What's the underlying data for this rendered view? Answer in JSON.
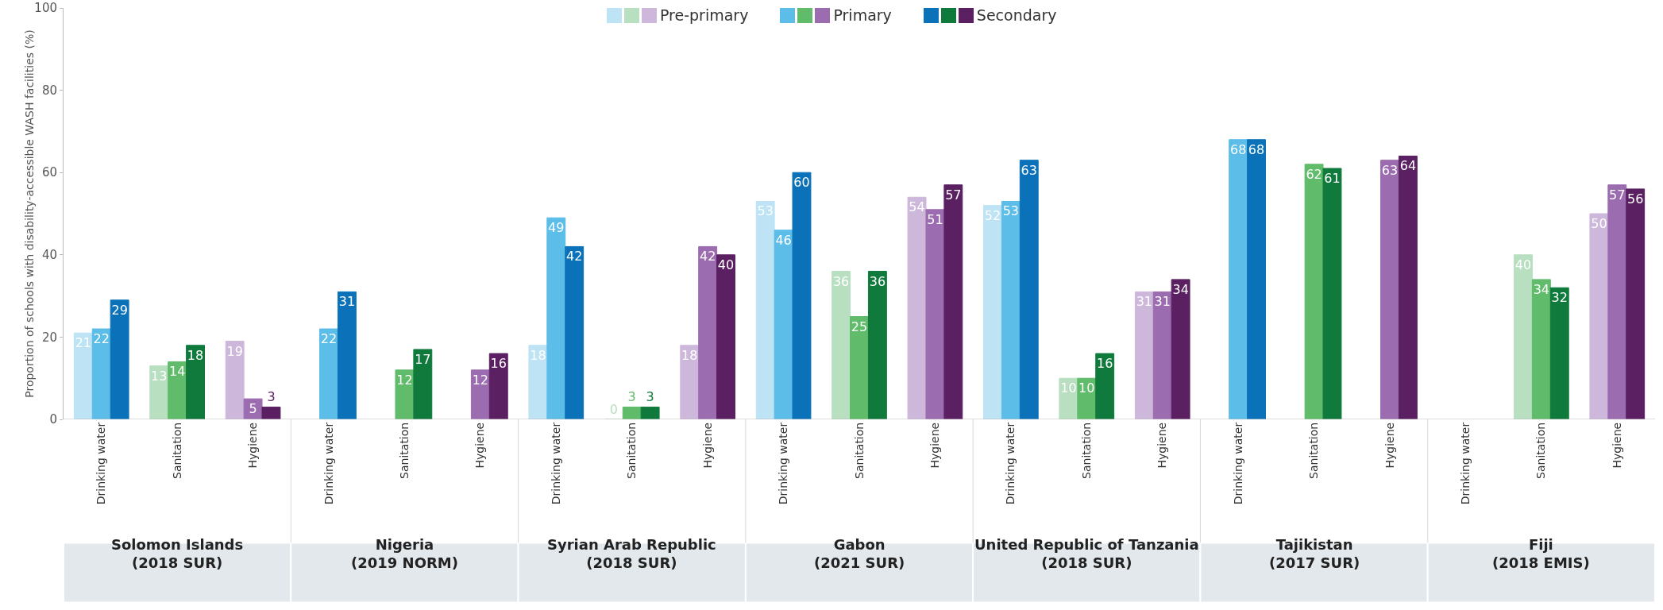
{
  "chart_data": {
    "type": "bar",
    "ylabel": "Proportion of schools with disability-accessible WASH facilities (%)",
    "categories": [
      "Drinking water",
      "Sanitation",
      "Hygiene",
      "Drinking water",
      "Sanitation",
      "Hygiene",
      "Drinking water",
      "Sanitation",
      "Hygiene",
      "Drinking water",
      "Sanitation",
      "Hygiene",
      "Drinking water",
      "Sanitation",
      "Hygiene",
      "Drinking water",
      "Sanitation",
      "Hygiene",
      "Drinking water",
      "Sanitation",
      "Hygiene"
    ],
    "series": [
      {
        "name": "Pre-primary",
        "colors": [
          "#bde3f5",
          "#b7dfc0",
          "#cdb8db",
          "#bde3f5",
          "#b7dfc0",
          "#cdb8db",
          "#bde3f5",
          "#b7dfc0",
          "#cdb8db",
          "#bde3f5",
          "#b7dfc0",
          "#cdb8db",
          "#bde3f5",
          "#b7dfc0",
          "#cdb8db",
          "#bde3f5",
          "#b7dfc0",
          "#cdb8db",
          "#bde3f5",
          "#b7dfc0",
          "#cdb8db"
        ],
        "values": [
          21,
          13,
          19,
          null,
          null,
          null,
          18,
          0,
          18,
          53,
          36,
          54,
          52,
          10,
          31,
          null,
          null,
          null,
          null,
          40,
          50
        ]
      },
      {
        "name": "Primary",
        "colors": [
          "#5bbde8",
          "#60bb6a",
          "#9c6cb0",
          "#5bbde8",
          "#60bb6a",
          "#9c6cb0",
          "#5bbde8",
          "#60bb6a",
          "#9c6cb0",
          "#5bbde8",
          "#60bb6a",
          "#9c6cb0",
          "#5bbde8",
          "#60bb6a",
          "#9c6cb0",
          "#5bbde8",
          "#60bb6a",
          "#9c6cb0",
          "#5bbde8",
          "#60bb6a",
          "#9c6cb0"
        ],
        "values": [
          22,
          14,
          5,
          22,
          12,
          12,
          49,
          3,
          42,
          46,
          25,
          51,
          53,
          10,
          31,
          68,
          62,
          63,
          null,
          34,
          57
        ]
      },
      {
        "name": "Secondary",
        "colors": [
          "#0b72b9",
          "#0f7a3c",
          "#5a2062",
          "#0b72b9",
          "#0f7a3c",
          "#5a2062",
          "#0b72b9",
          "#0f7a3c",
          "#5a2062",
          "#0b72b9",
          "#0f7a3c",
          "#5a2062",
          "#0b72b9",
          "#0f7a3c",
          "#5a2062",
          "#0b72b9",
          "#0f7a3c",
          "#5a2062",
          "#0b72b9",
          "#0f7a3c",
          "#5a2062"
        ],
        "values": [
          29,
          18,
          3,
          31,
          17,
          16,
          42,
          3,
          40,
          60,
          36,
          57,
          63,
          16,
          34,
          68,
          61,
          64,
          null,
          32,
          56
        ]
      }
    ],
    "ylim": [
      0,
      100
    ],
    "yticks": [
      0,
      20,
      40,
      60,
      80,
      100
    ],
    "grid": false,
    "legend": "top",
    "data_labels": true,
    "annotations": [
      "Solomon Islands (2018 SUR)",
      "Nigeria (2019 NORM)",
      "Syrian Arab Republic (2018 SUR)",
      "Gabon (2021 SUR)",
      "United Republic of Tanzania (2018 SUR)",
      "Tajikistan (2017 SUR)",
      "Fiji (2018 EMIS)"
    ]
  }
}
